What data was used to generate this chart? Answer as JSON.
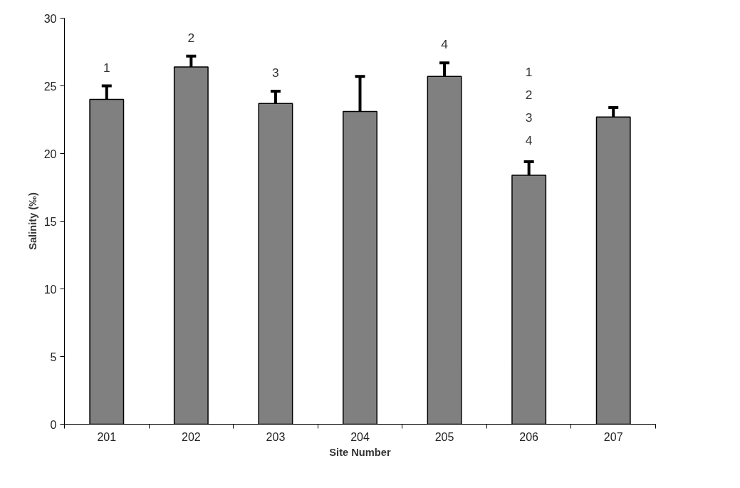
{
  "chart_data": {
    "type": "bar",
    "xlabel": "Site Number",
    "ylabel": "Salinity (‰)",
    "categories": [
      "201",
      "202",
      "203",
      "204",
      "205",
      "206",
      "207"
    ],
    "values": [
      24.0,
      26.4,
      23.7,
      23.1,
      25.7,
      18.4,
      22.7
    ],
    "errors": [
      [
        24.0,
        25.0
      ],
      [
        26.4,
        27.2
      ],
      [
        23.7,
        24.6
      ],
      [
        23.1,
        25.7
      ],
      [
        25.7,
        26.7
      ],
      [
        18.4,
        19.4
      ],
      [
        22.7,
        23.4
      ]
    ],
    "color": "#808080",
    "ylim": [
      0,
      30
    ],
    "yticks": [
      0,
      5,
      10,
      15,
      20,
      25,
      30
    ],
    "grid": false,
    "annotations": [
      "1",
      "2",
      "3",
      "4",
      "1\n2\n3\n4"
    ]
  }
}
